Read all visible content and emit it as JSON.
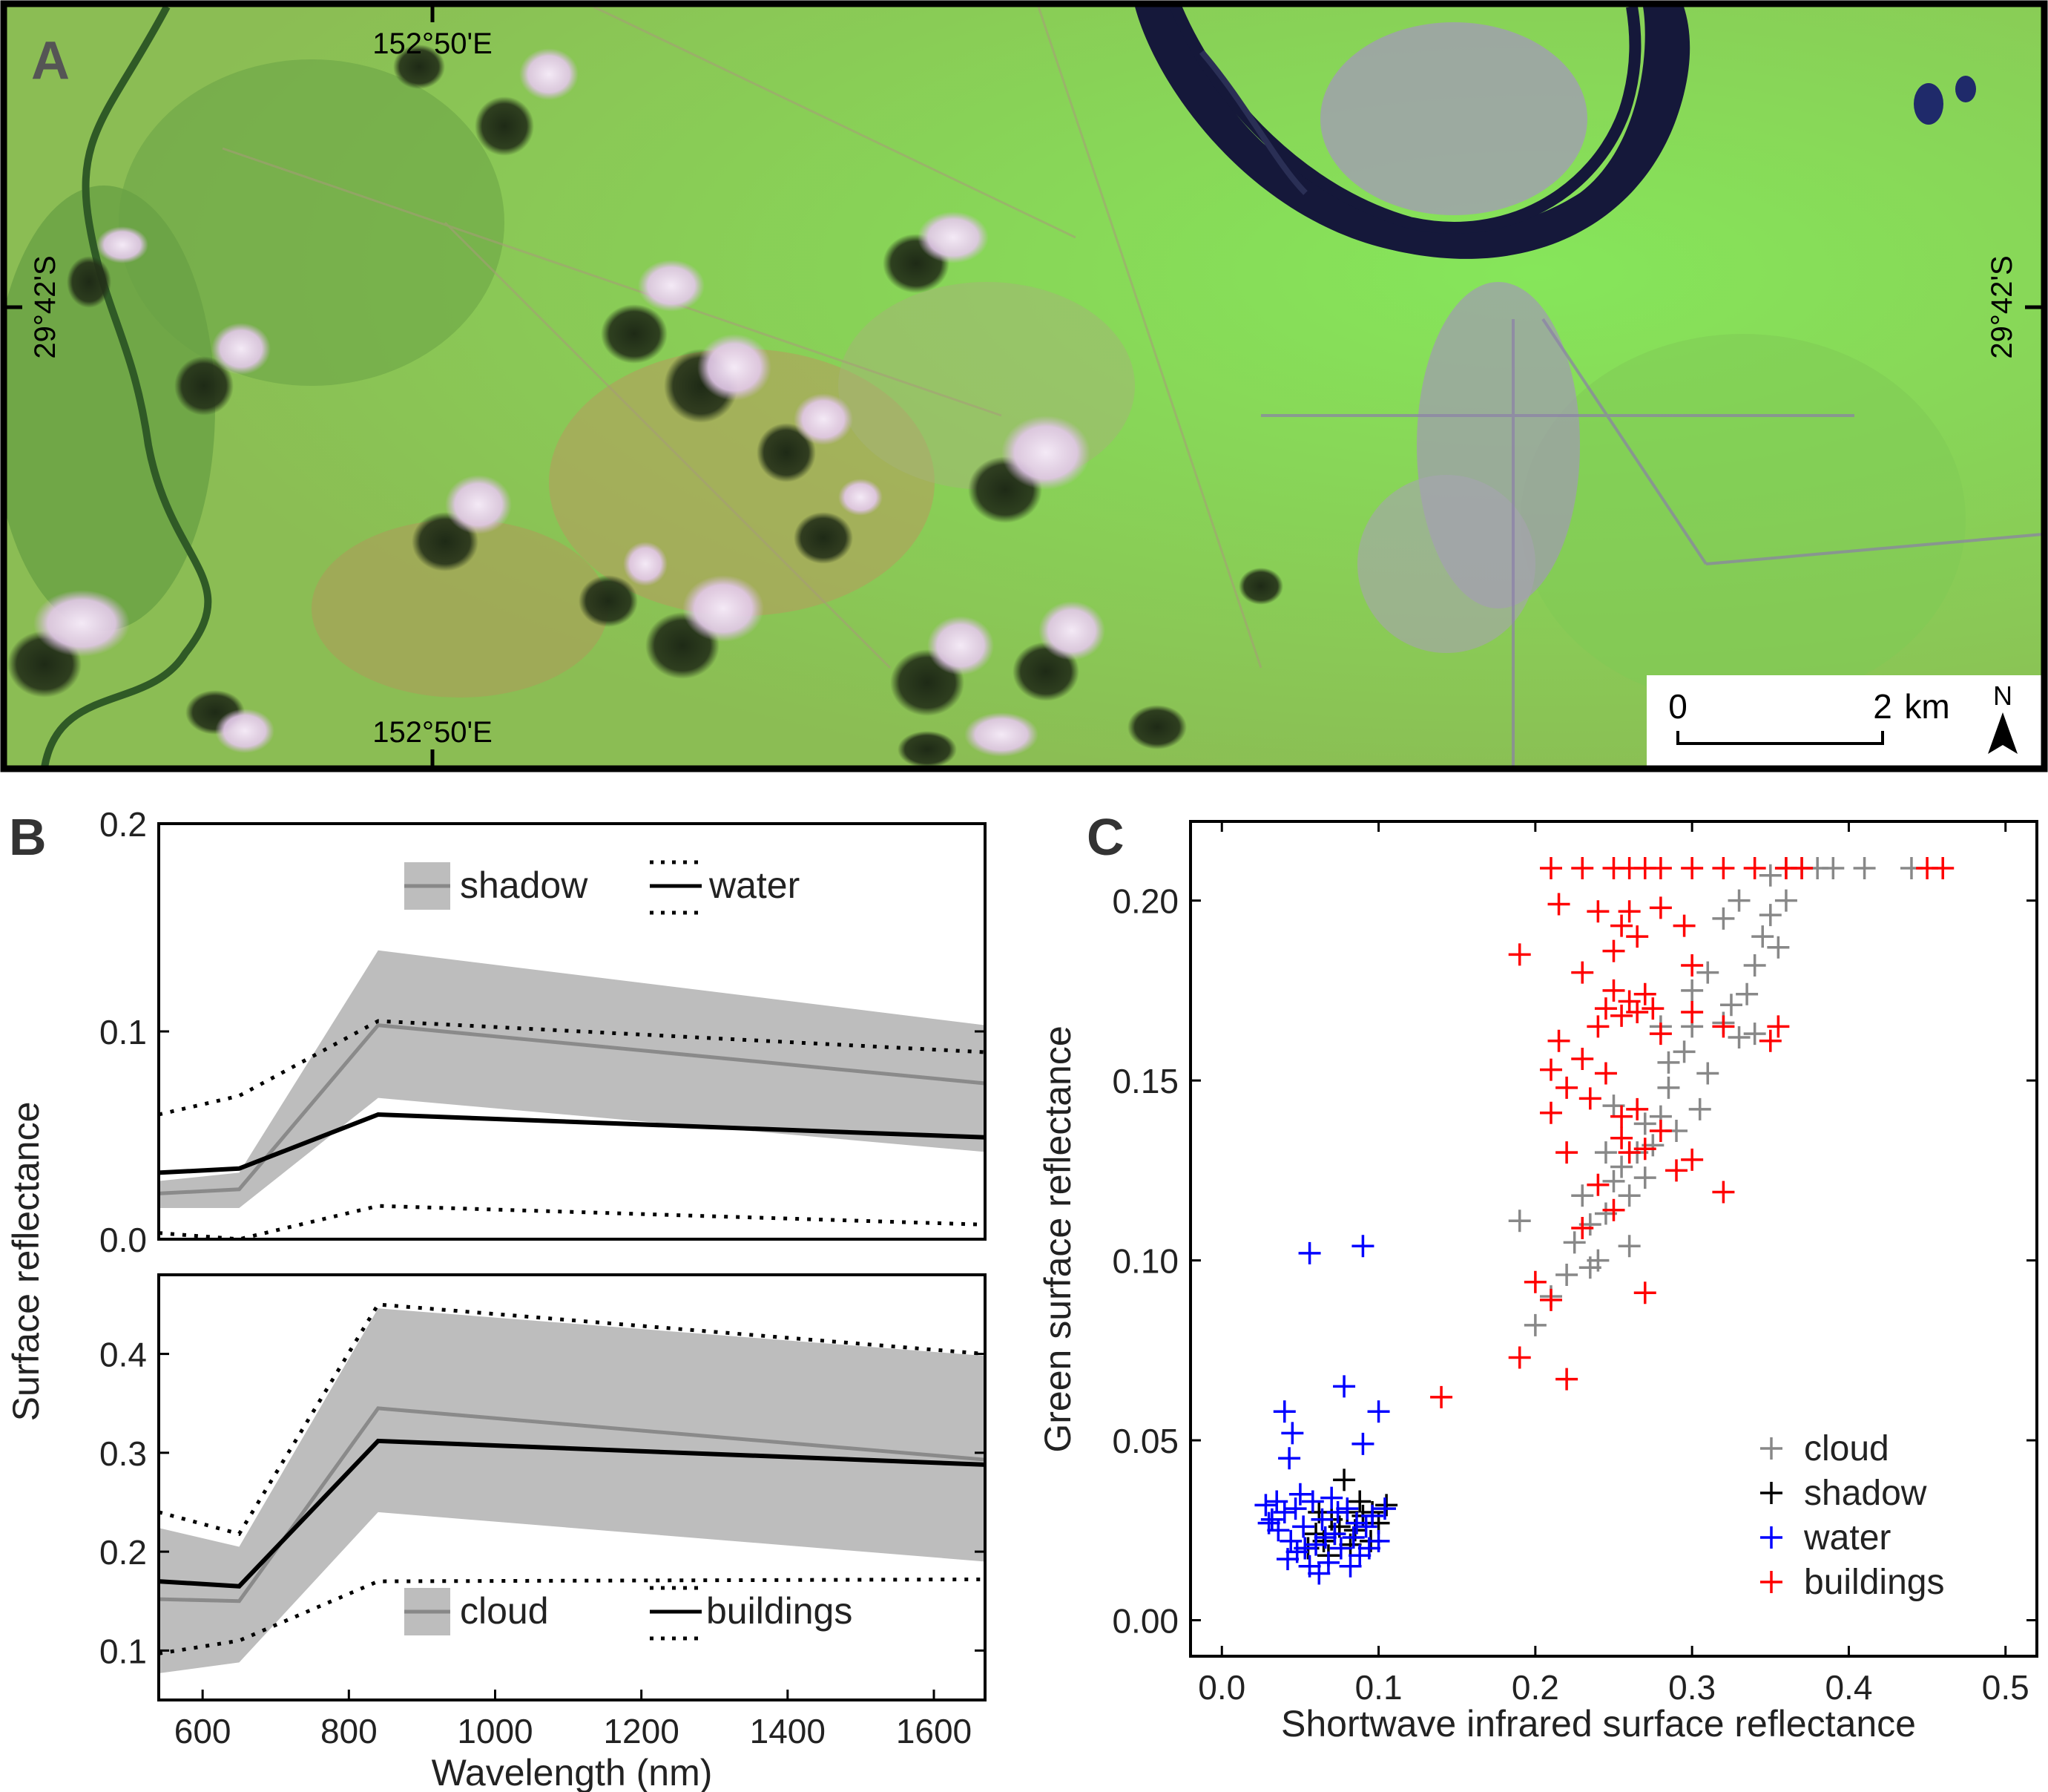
{
  "figure": {
    "panel_labels": {
      "a": "A",
      "b": "B",
      "c": "C"
    }
  },
  "map": {
    "label_top_lon": "152°50'E",
    "label_bottom_lon": "152°50'E",
    "label_left_lat": "29°42'S",
    "label_right_lat": "29°42'S",
    "scale_zero": "0",
    "scale_two": "2",
    "scale_unit": "km",
    "north": "N"
  },
  "chart_data": [
    {
      "id": "B-top",
      "type": "line",
      "xlim": [
        540,
        1670
      ],
      "ylim": [
        0,
        0.2
      ],
      "yticks": [
        0.0,
        0.1,
        0.2
      ],
      "yticklabels": [
        "0.0",
        "0.1",
        "0.2"
      ],
      "x": [
        540,
        650,
        840,
        1670
      ],
      "series": [
        {
          "name": "shadow",
          "style": "band",
          "color": "#bdbdbd",
          "mean": [
            0.022,
            0.024,
            0.103,
            0.075
          ],
          "lower": [
            0.015,
            0.015,
            0.068,
            0.042
          ],
          "upper": [
            0.028,
            0.032,
            0.139,
            0.103
          ]
        },
        {
          "name": "water",
          "style": "solid-dotted",
          "color": "#000000",
          "mean": [
            0.032,
            0.034,
            0.06,
            0.049
          ],
          "lower": [
            0.003,
            -0.002,
            0.016,
            0.007
          ],
          "upper": [
            0.06,
            0.069,
            0.105,
            0.09
          ]
        }
      ],
      "legend": [
        "shadow",
        "water"
      ],
      "legend_position": "top"
    },
    {
      "id": "B-bottom",
      "type": "line",
      "xlim": [
        540,
        1670
      ],
      "ylim": [
        0.05,
        0.48
      ],
      "yticks": [
        0.1,
        0.2,
        0.3,
        0.4
      ],
      "yticklabels": [
        "0.1",
        "0.2",
        "0.3",
        "0.4"
      ],
      "xticks": [
        600,
        800,
        1000,
        1200,
        1400,
        1600
      ],
      "xticklabels": [
        "600",
        "800",
        "1000",
        "1200",
        "1400",
        "1600"
      ],
      "xlabel": "Wavelength (nm)",
      "ylabel": "Surface reflectance",
      "x": [
        540,
        650,
        840,
        1670
      ],
      "series": [
        {
          "name": "cloud",
          "style": "band",
          "color": "#bdbdbd",
          "mean": [
            0.152,
            0.15,
            0.345,
            0.293
          ],
          "lower": [
            0.077,
            0.088,
            0.24,
            0.19
          ],
          "upper": [
            0.224,
            0.205,
            0.446,
            0.398
          ]
        },
        {
          "name": "buildings",
          "style": "solid-dotted",
          "color": "#000000",
          "mean": [
            0.17,
            0.165,
            0.312,
            0.288
          ],
          "lower": [
            0.097,
            0.11,
            0.17,
            0.172
          ],
          "upper": [
            0.24,
            0.218,
            0.45,
            0.4
          ]
        }
      ],
      "legend": [
        "cloud",
        "buildings"
      ],
      "legend_position": "bottom"
    },
    {
      "id": "C",
      "type": "scatter",
      "title": "",
      "xlabel": "Shortwave infrared surface reflectance",
      "ylabel": "Green surface reflectance",
      "xlim": [
        -0.02,
        0.52
      ],
      "ylim": [
        -0.01,
        0.222
      ],
      "xticks": [
        0.0,
        0.1,
        0.2,
        0.3,
        0.4,
        0.5
      ],
      "xticklabels": [
        "0.0",
        "0.1",
        "0.2",
        "0.3",
        "0.4",
        "0.5"
      ],
      "yticks": [
        0.0,
        0.05,
        0.1,
        0.15,
        0.2
      ],
      "yticklabels": [
        "0.00",
        "0.05",
        "0.10",
        "0.15",
        "0.20"
      ],
      "legend_position": "bottom-right",
      "series": [
        {
          "name": "cloud",
          "color": "#888888",
          "points": [
            [
              0.19,
              0.111
            ],
            [
              0.2,
              0.082
            ],
            [
              0.21,
              0.09
            ],
            [
              0.22,
              0.096
            ],
            [
              0.225,
              0.105
            ],
            [
              0.23,
              0.118
            ],
            [
              0.235,
              0.11
            ],
            [
              0.24,
              0.1
            ],
            [
              0.245,
              0.113
            ],
            [
              0.25,
              0.122
            ],
            [
              0.245,
              0.13
            ],
            [
              0.255,
              0.126
            ],
            [
              0.26,
              0.118
            ],
            [
              0.265,
              0.13
            ],
            [
              0.27,
              0.138
            ],
            [
              0.275,
              0.132
            ],
            [
              0.28,
              0.14
            ],
            [
              0.285,
              0.148
            ],
            [
              0.29,
              0.136
            ],
            [
              0.295,
              0.158
            ],
            [
              0.3,
              0.165
            ],
            [
              0.305,
              0.142
            ],
            [
              0.31,
              0.152
            ],
            [
              0.3,
              0.175
            ],
            [
              0.31,
              0.18
            ],
            [
              0.32,
              0.166
            ],
            [
              0.325,
              0.171
            ],
            [
              0.33,
              0.162
            ],
            [
              0.335,
              0.174
            ],
            [
              0.34,
              0.182
            ],
            [
              0.345,
              0.19
            ],
            [
              0.35,
              0.196
            ],
            [
              0.355,
              0.187
            ],
            [
              0.36,
              0.2
            ],
            [
              0.35,
              0.207
            ],
            [
              0.37,
              0.209
            ],
            [
              0.38,
              0.209
            ],
            [
              0.39,
              0.209
            ],
            [
              0.41,
              0.209
            ],
            [
              0.44,
              0.209
            ],
            [
              0.36,
              0.209
            ],
            [
              0.33,
              0.2
            ],
            [
              0.32,
              0.195
            ],
            [
              0.34,
              0.163
            ],
            [
              0.285,
              0.155
            ],
            [
              0.27,
              0.123
            ],
            [
              0.26,
              0.104
            ],
            [
              0.235,
              0.098
            ],
            [
              0.25,
              0.143
            ],
            [
              0.28,
              0.165
            ]
          ]
        },
        {
          "name": "shadow",
          "color": "#000000",
          "points": [
            [
              0.055,
              0.02
            ],
            [
              0.06,
              0.024
            ],
            [
              0.065,
              0.022
            ],
            [
              0.07,
              0.028
            ],
            [
              0.075,
              0.026
            ],
            [
              0.08,
              0.03
            ],
            [
              0.085,
              0.025
            ],
            [
              0.09,
              0.029
            ],
            [
              0.095,
              0.022
            ],
            [
              0.1,
              0.027
            ],
            [
              0.105,
              0.032
            ],
            [
              0.078,
              0.039
            ],
            [
              0.068,
              0.018
            ],
            [
              0.088,
              0.033
            ],
            [
              0.062,
              0.03
            ],
            [
              0.096,
              0.03
            ],
            [
              0.082,
              0.021
            ],
            [
              0.072,
              0.024
            ]
          ]
        },
        {
          "name": "water",
          "color": "#0000ff",
          "points": [
            [
              0.028,
              0.032
            ],
            [
              0.032,
              0.028
            ],
            [
              0.036,
              0.025
            ],
            [
              0.04,
              0.03
            ],
            [
              0.044,
              0.022
            ],
            [
              0.048,
              0.019
            ],
            [
              0.052,
              0.026
            ],
            [
              0.056,
              0.015
            ],
            [
              0.06,
              0.021
            ],
            [
              0.064,
              0.028
            ],
            [
              0.068,
              0.016
            ],
            [
              0.072,
              0.024
            ],
            [
              0.076,
              0.02
            ],
            [
              0.08,
              0.031
            ],
            [
              0.084,
              0.023
            ],
            [
              0.088,
              0.018
            ],
            [
              0.092,
              0.026
            ],
            [
              0.096,
              0.029
            ],
            [
              0.1,
              0.022
            ],
            [
              0.104,
              0.031
            ],
            [
              0.035,
              0.033
            ],
            [
              0.042,
              0.017
            ],
            [
              0.047,
              0.031
            ],
            [
              0.053,
              0.02
            ],
            [
              0.058,
              0.033
            ],
            [
              0.066,
              0.023
            ],
            [
              0.074,
              0.03
            ],
            [
              0.086,
              0.027
            ],
            [
              0.04,
              0.058
            ],
            [
              0.045,
              0.052
            ],
            [
              0.043,
              0.045
            ],
            [
              0.078,
              0.065
            ],
            [
              0.09,
              0.049
            ],
            [
              0.1,
              0.058
            ],
            [
              0.056,
              0.102
            ],
            [
              0.09,
              0.104
            ],
            [
              0.05,
              0.035
            ],
            [
              0.07,
              0.034
            ],
            [
              0.03,
              0.027
            ],
            [
              0.062,
              0.013
            ],
            [
              0.082,
              0.015
            ],
            [
              0.094,
              0.02
            ]
          ]
        },
        {
          "name": "buildings",
          "color": "#ff0000",
          "points": [
            [
              0.14,
              0.062
            ],
            [
              0.19,
              0.073
            ],
            [
              0.22,
              0.067
            ],
            [
              0.2,
              0.094
            ],
            [
              0.21,
              0.089
            ],
            [
              0.23,
              0.109
            ],
            [
              0.27,
              0.091
            ],
            [
              0.24,
              0.121
            ],
            [
              0.25,
              0.114
            ],
            [
              0.26,
              0.13
            ],
            [
              0.255,
              0.14
            ],
            [
              0.265,
              0.142
            ],
            [
              0.27,
              0.131
            ],
            [
              0.28,
              0.136
            ],
            [
              0.29,
              0.125
            ],
            [
              0.3,
              0.128
            ],
            [
              0.32,
              0.119
            ],
            [
              0.21,
              0.141
            ],
            [
              0.21,
              0.153
            ],
            [
              0.215,
              0.161
            ],
            [
              0.22,
              0.148
            ],
            [
              0.23,
              0.156
            ],
            [
              0.24,
              0.165
            ],
            [
              0.245,
              0.17
            ],
            [
              0.25,
              0.175
            ],
            [
              0.255,
              0.168
            ],
            [
              0.26,
              0.172
            ],
            [
              0.265,
              0.169
            ],
            [
              0.27,
              0.174
            ],
            [
              0.275,
              0.17
            ],
            [
              0.28,
              0.163
            ],
            [
              0.23,
              0.18
            ],
            [
              0.25,
              0.186
            ],
            [
              0.255,
              0.193
            ],
            [
              0.265,
              0.19
            ],
            [
              0.24,
              0.197
            ],
            [
              0.26,
              0.197
            ],
            [
              0.19,
              0.185
            ],
            [
              0.215,
              0.199
            ],
            [
              0.295,
              0.193
            ],
            [
              0.3,
              0.182
            ],
            [
              0.3,
              0.169
            ],
            [
              0.32,
              0.165
            ],
            [
              0.35,
              0.161
            ],
            [
              0.355,
              0.165
            ],
            [
              0.28,
              0.198
            ],
            [
              0.21,
              0.209
            ],
            [
              0.23,
              0.209
            ],
            [
              0.25,
              0.209
            ],
            [
              0.26,
              0.209
            ],
            [
              0.27,
              0.209
            ],
            [
              0.28,
              0.209
            ],
            [
              0.3,
              0.209
            ],
            [
              0.32,
              0.209
            ],
            [
              0.34,
              0.209
            ],
            [
              0.36,
              0.209
            ],
            [
              0.37,
              0.209
            ],
            [
              0.45,
              0.209
            ],
            [
              0.46,
              0.209
            ],
            [
              0.255,
              0.134
            ],
            [
              0.22,
              0.13
            ],
            [
              0.245,
              0.152
            ],
            [
              0.235,
              0.145
            ]
          ]
        }
      ]
    }
  ]
}
